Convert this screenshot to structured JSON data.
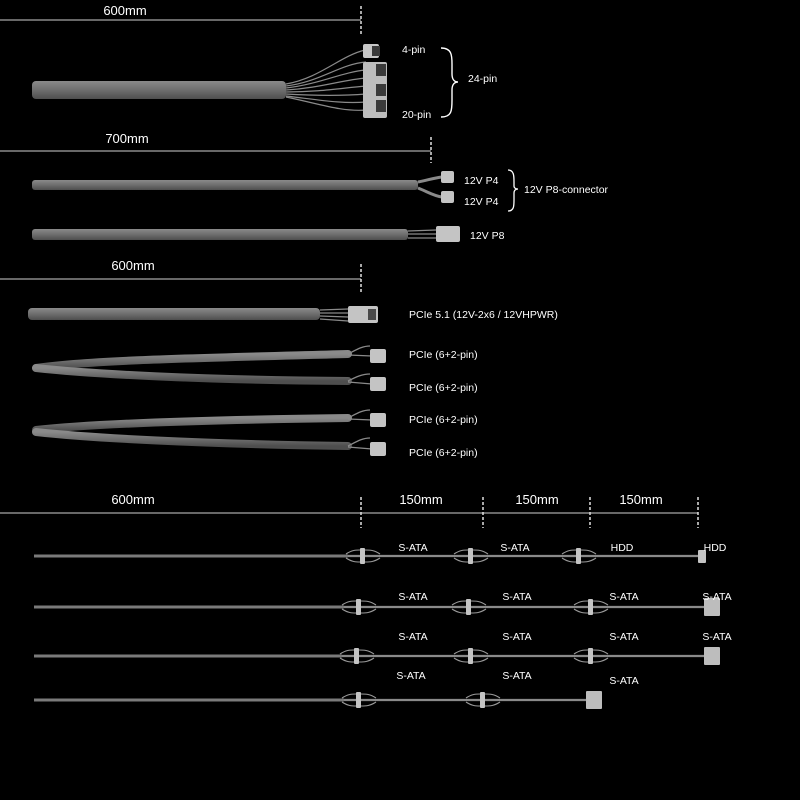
{
  "colors": {
    "background": "#000000",
    "cable": "#7a7a7a",
    "cable_light": "#9a9a9a",
    "wire": "#8a8a8a",
    "connector": "#b5b5b5",
    "connector_dark": "#444444",
    "text": "#ffffff",
    "dimension_line": "#d0d0d0"
  },
  "section_atx": {
    "length": "600mm",
    "pin_top": "4-pin",
    "pin_bottom": "20-pin",
    "group": "24-pin"
  },
  "section_cpu": {
    "length": "700mm",
    "p4_a": "12V P4",
    "p4_b": "12V P4",
    "p8_group": "12V P8-connector",
    "p8_single": "12V P8"
  },
  "section_pcie": {
    "length": "600mm",
    "pcie51": "PCIe 5.1 (12V-2x6 / 12VHPWR)",
    "pcie_1": "PCIe (6+2-pin)",
    "pcie_2": "PCIe (6+2-pin)",
    "pcie_3": "PCIe (6+2-pin)",
    "pcie_4": "PCIe (6+2-pin)"
  },
  "section_peripheral": {
    "length_main": "600mm",
    "seg_1": "150mm",
    "seg_2": "150mm",
    "seg_3": "150mm",
    "row1": [
      "S-ATA",
      "S-ATA",
      "HDD",
      "HDD"
    ],
    "row2": [
      "S-ATA",
      "S-ATA",
      "S-ATA",
      "S-ATA"
    ],
    "row3": [
      "S-ATA",
      "S-ATA",
      "S-ATA",
      "S-ATA"
    ],
    "row4": [
      "S-ATA",
      "S-ATA",
      "S-ATA"
    ]
  }
}
